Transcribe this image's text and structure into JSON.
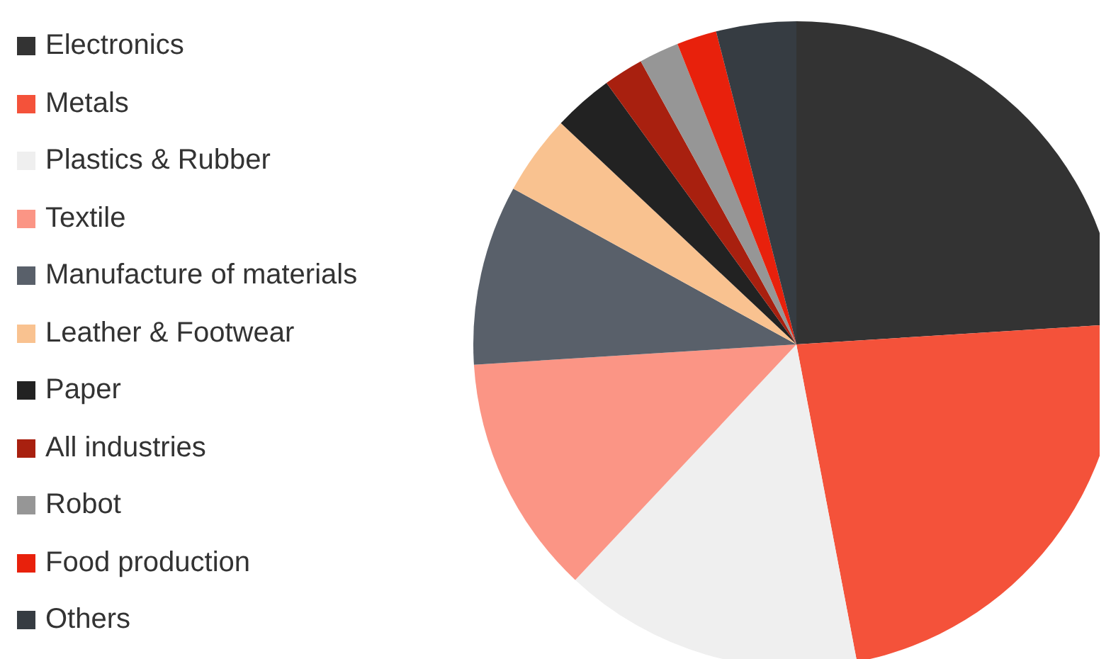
{
  "chart_data": {
    "type": "pie",
    "categories": [
      "Electronics",
      "Metals",
      "Plastics & Rubber",
      "Textile",
      "Manufacture of materials",
      "Leather & Footwear",
      "Paper",
      "All industries",
      "Robot",
      "Food production",
      "Others"
    ],
    "values": [
      24,
      23,
      15,
      12,
      9,
      4,
      3,
      2,
      2,
      2,
      4
    ],
    "colors": [
      "#333333",
      "#f4523a",
      "#efefef",
      "#fb9585",
      "#59606a",
      "#f9c290",
      "#222222",
      "#a8200f",
      "#969696",
      "#e8210c",
      "#363c42"
    ],
    "legend": "left"
  }
}
